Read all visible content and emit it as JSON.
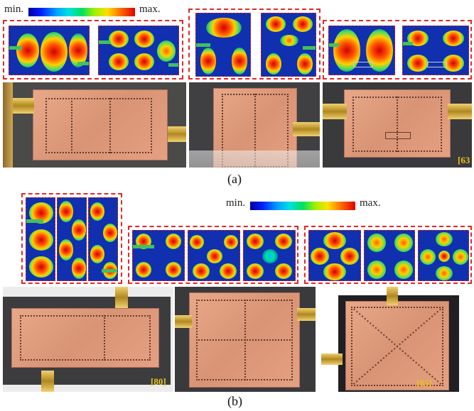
{
  "panel_a": {
    "scale_min": "min.",
    "scale_max": "max.",
    "caption": "(a)",
    "ref": "[63"
  },
  "panel_b": {
    "scale_min": "min.",
    "scale_max": "max.",
    "caption": "(b)",
    "ref_left": "[80]",
    "ref_right": "[85]"
  },
  "colors": {
    "field_background": "#1030b0",
    "dash_border": "#e02828",
    "copper": "#d89474",
    "substrate": "#3a3a3a"
  }
}
